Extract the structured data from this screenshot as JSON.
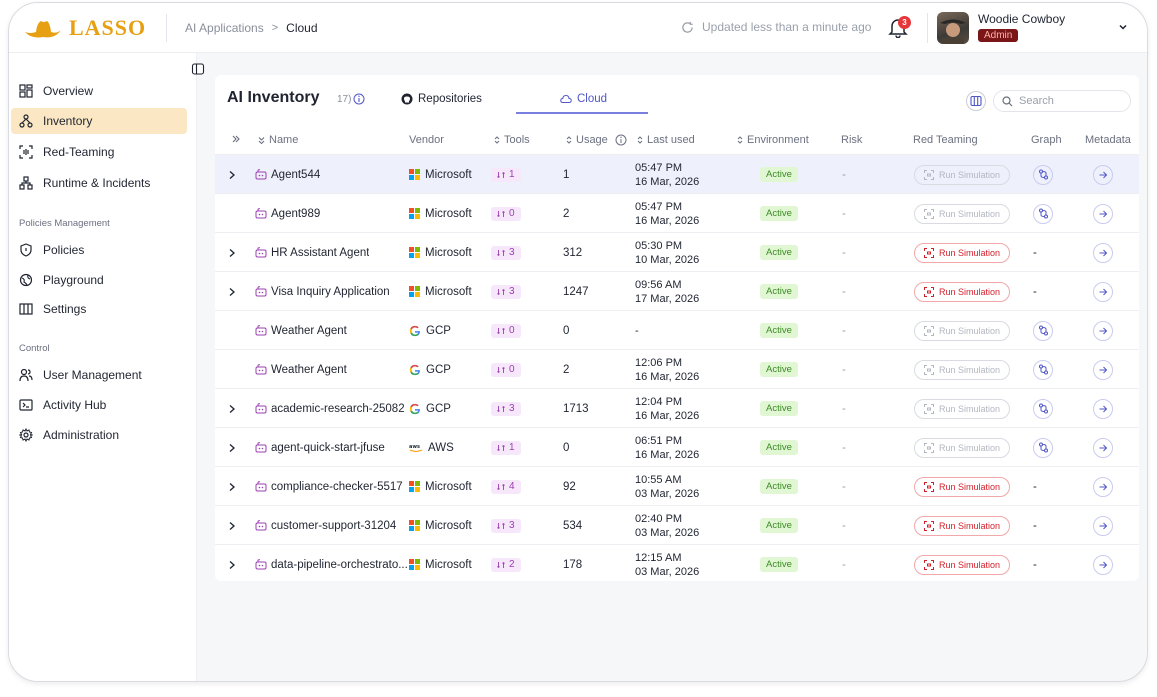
{
  "app": {
    "logo_text": "LASSO",
    "breadcrumb": {
      "parent": "AI Applications",
      "separator": ">",
      "current": "Cloud"
    },
    "updated_text": "Updated less than a minute ago",
    "notifications_count": "3",
    "user": {
      "name": "Woodie Cowboy",
      "role": "Admin"
    }
  },
  "sidebar": {
    "items_top": [
      {
        "label": "Overview",
        "icon": "grid-icon",
        "active": false
      },
      {
        "label": "Inventory",
        "icon": "hierarchy-icon",
        "active": true
      },
      {
        "label": "Red-Teaming",
        "icon": "scan-icon",
        "active": false
      },
      {
        "label": "Runtime & Incidents",
        "icon": "network-icon",
        "active": false
      }
    ],
    "section_policies": "Policies Management",
    "items_policies": [
      {
        "label": "Policies",
        "icon": "shield-icon"
      },
      {
        "label": "Playground",
        "icon": "globe-icon"
      },
      {
        "label": "Settings",
        "icon": "columns-icon"
      }
    ],
    "section_control": "Control",
    "items_control": [
      {
        "label": "User Management",
        "icon": "users-icon"
      },
      {
        "label": "Activity Hub",
        "icon": "terminal-icon"
      },
      {
        "label": "Administration",
        "icon": "gear-icon"
      }
    ]
  },
  "main": {
    "title": "AI Inventory",
    "count": "17)",
    "tabs": {
      "repositories": "Repositories",
      "cloud": "Cloud"
    },
    "search_placeholder": "Search",
    "columns": {
      "name": "Name",
      "vendor": "Vendor",
      "tools": "Tools",
      "usage": "Usage",
      "last_used": "Last used",
      "environment": "Environment",
      "risk": "Risk",
      "red_teaming": "Red Teaming",
      "graph": "Graph",
      "metadata": "Metadata"
    },
    "run_simulation_label": "Run Simulation",
    "rows": [
      {
        "expandable": true,
        "name": "Agent544",
        "vendor": "Microsoft",
        "tools": "1",
        "usage": "1",
        "time": "05:47 PM",
        "date": "16 Mar, 2026",
        "env": "Active",
        "risk": "-",
        "sim_enabled": false,
        "graph_text": "",
        "has_graph": true,
        "highlight": true
      },
      {
        "expandable": false,
        "name": "Agent989",
        "vendor": "Microsoft",
        "tools": "0",
        "usage": "2",
        "time": "05:47 PM",
        "date": "16 Mar, 2026",
        "env": "Active",
        "risk": "-",
        "sim_enabled": false,
        "graph_text": "",
        "has_graph": true,
        "highlight": false
      },
      {
        "expandable": true,
        "name": "HR Assistant Agent",
        "vendor": "Microsoft",
        "tools": "3",
        "usage": "312",
        "time": "05:30 PM",
        "date": "10 Mar, 2026",
        "env": "Active",
        "risk": "-",
        "sim_enabled": true,
        "graph_text": "-",
        "has_graph": false,
        "highlight": false
      },
      {
        "expandable": true,
        "name": "Visa Inquiry Application",
        "vendor": "Microsoft",
        "tools": "3",
        "usage": "1247",
        "time": "09:56 AM",
        "date": "17 Mar, 2026",
        "env": "Active",
        "risk": "-",
        "sim_enabled": true,
        "graph_text": "-",
        "has_graph": false,
        "highlight": false
      },
      {
        "expandable": false,
        "name": "Weather Agent",
        "vendor": "GCP",
        "tools": "0",
        "usage": "0",
        "time": "-",
        "date": "",
        "env": "Active",
        "risk": "-",
        "sim_enabled": false,
        "graph_text": "",
        "has_graph": true,
        "highlight": false
      },
      {
        "expandable": false,
        "name": "Weather Agent",
        "vendor": "GCP",
        "tools": "0",
        "usage": "2",
        "time": "12:06 PM",
        "date": "16 Mar, 2026",
        "env": "Active",
        "risk": "-",
        "sim_enabled": false,
        "graph_text": "",
        "has_graph": true,
        "highlight": false
      },
      {
        "expandable": true,
        "name": "academic-research-25082",
        "vendor": "GCP",
        "tools": "3",
        "usage": "1713",
        "time": "12:04 PM",
        "date": "16 Mar, 2026",
        "env": "Active",
        "risk": "-",
        "sim_enabled": false,
        "graph_text": "",
        "has_graph": true,
        "highlight": false
      },
      {
        "expandable": true,
        "name": "agent-quick-start-jfuse",
        "vendor": "AWS",
        "tools": "1",
        "usage": "0",
        "time": "06:51 PM",
        "date": "16 Mar, 2026",
        "env": "Active",
        "risk": "-",
        "sim_enabled": false,
        "graph_text": "",
        "has_graph": true,
        "highlight": false
      },
      {
        "expandable": true,
        "name": "compliance-checker-5517",
        "vendor": "Microsoft",
        "tools": "4",
        "usage": "92",
        "time": "10:55 AM",
        "date": "03 Mar, 2026",
        "env": "Active",
        "risk": "-",
        "sim_enabled": true,
        "graph_text": "-",
        "has_graph": false,
        "highlight": false
      },
      {
        "expandable": true,
        "name": "customer-support-31204",
        "vendor": "Microsoft",
        "tools": "3",
        "usage": "534",
        "time": "02:40 PM",
        "date": "03 Mar, 2026",
        "env": "Active",
        "risk": "-",
        "sim_enabled": true,
        "graph_text": "-",
        "has_graph": false,
        "highlight": false
      },
      {
        "expandable": true,
        "name": "data-pipeline-orchestrato...",
        "vendor": "Microsoft",
        "tools": "2",
        "usage": "178",
        "time": "12:15 AM",
        "date": "03 Mar, 2026",
        "env": "Active",
        "risk": "-",
        "sim_enabled": true,
        "graph_text": "-",
        "has_graph": false,
        "highlight": false
      }
    ]
  },
  "colors": {
    "accent": "#4f56c7",
    "logo": "#e6a012",
    "active_nav": "#fbe7c3",
    "active_badge_bg": "#e1f7d4",
    "run_sim_enabled": "#d21f2a"
  }
}
